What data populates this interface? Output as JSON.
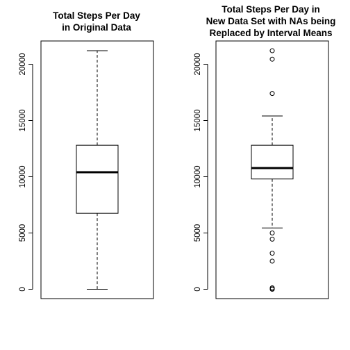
{
  "chart_data": [
    {
      "type": "boxplot",
      "title_lines": [
        "Total Steps Per Day",
        "in Original Data"
      ],
      "xlabel": "",
      "ylabel": "",
      "ylim": [
        0,
        22000
      ],
      "yticks": [
        0,
        5000,
        10000,
        15000,
        20000
      ],
      "stats": {
        "min": 0,
        "q1": 6750,
        "median": 10400,
        "q3": 12800,
        "max": 21200
      },
      "outliers": []
    },
    {
      "type": "boxplot",
      "title_lines": [
        "Total Steps Per Day in",
        "New Data Set with NAs being",
        "Replaced by Interval Means"
      ],
      "xlabel": "",
      "ylabel": "",
      "ylim": [
        0,
        22000
      ],
      "yticks": [
        0,
        5000,
        10000,
        15000,
        20000
      ],
      "stats": {
        "min": 5450,
        "q1": 9800,
        "median": 10770,
        "q3": 12800,
        "max": 15400
      },
      "outliers": [
        0,
        41,
        126,
        2500,
        3200,
        4450,
        5000,
        17400,
        20450,
        21200
      ]
    }
  ]
}
